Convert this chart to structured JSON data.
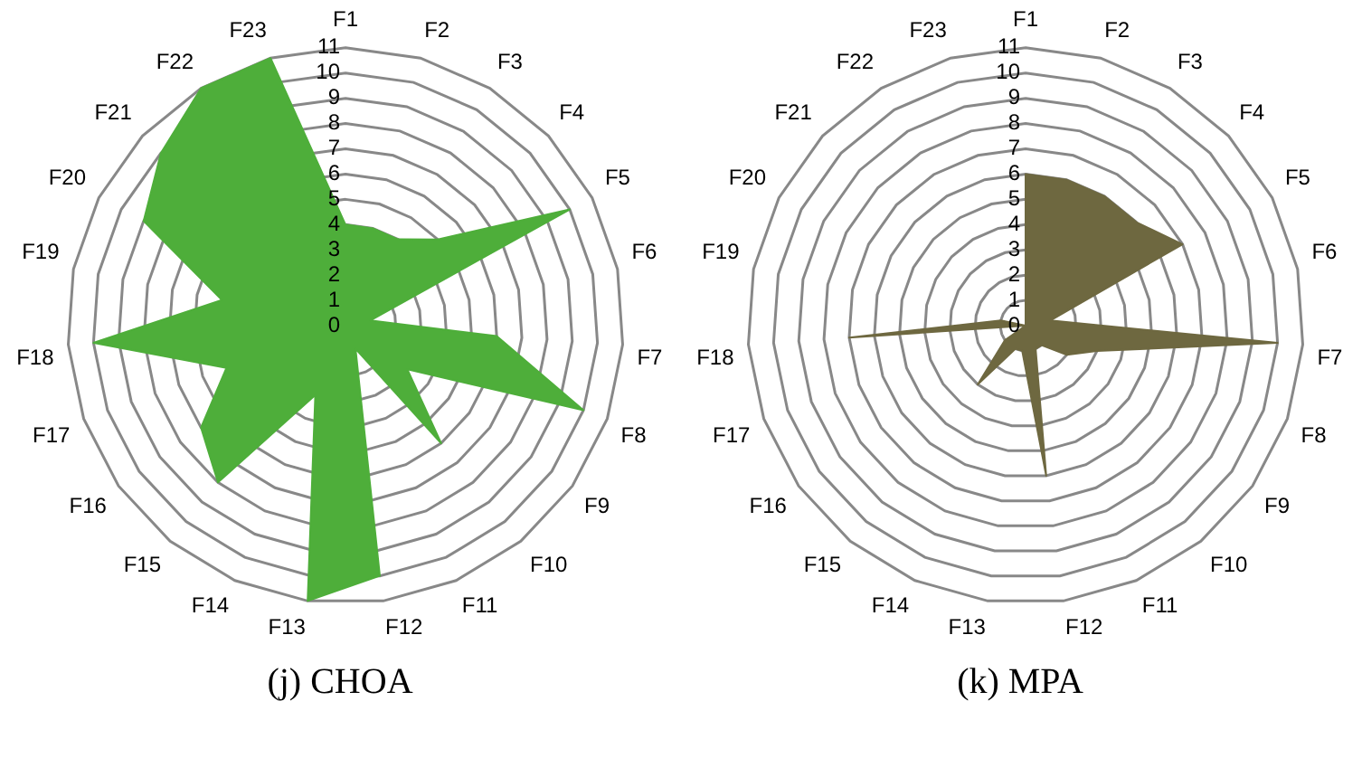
{
  "chart_data": [
    {
      "type": "radar",
      "title": "(j) CHOA",
      "categories": [
        "F1",
        "F2",
        "F3",
        "F4",
        "F5",
        "F6",
        "F7",
        "F8",
        "F9",
        "F10",
        "F11",
        "F12",
        "F13",
        "F14",
        "F15",
        "F16",
        "F17",
        "F18",
        "F19",
        "F20",
        "F21",
        "F22",
        "F23"
      ],
      "series": [
        {
          "color": "#4eae3a",
          "values": [
            4,
            4,
            4,
            5,
            10,
            1,
            6,
            10,
            3,
            6,
            1,
            10,
            11,
            3,
            8,
            7,
            5,
            10,
            5,
            9,
            10,
            11,
            11
          ]
        }
      ],
      "ylim": [
        0,
        11
      ],
      "yticks": [
        0,
        1,
        2,
        3,
        4,
        5,
        6,
        7,
        8,
        9,
        10,
        11
      ],
      "grid": true,
      "legend": false,
      "marker": "none"
    },
    {
      "type": "radar",
      "title": "(k) MPA",
      "categories": [
        "F1",
        "F2",
        "F3",
        "F4",
        "F5",
        "F6",
        "F7",
        "F8",
        "F9",
        "F10",
        "F11",
        "F12",
        "F13",
        "F14",
        "F15",
        "F16",
        "F17",
        "F18",
        "F19",
        "F20",
        "F21",
        "F22",
        "F23"
      ],
      "series": [
        {
          "color": "#6e6840",
          "values": [
            6,
            6,
            6,
            6,
            7,
            1,
            10,
            3,
            2,
            1,
            1,
            6,
            1,
            1,
            3,
            1,
            0,
            7,
            1,
            0,
            0,
            0,
            0
          ]
        }
      ],
      "ylim": [
        0,
        11
      ],
      "yticks": [
        0,
        1,
        2,
        3,
        4,
        5,
        6,
        7,
        8,
        9,
        10,
        11
      ],
      "grid": true,
      "legend": false,
      "marker": "none"
    }
  ]
}
